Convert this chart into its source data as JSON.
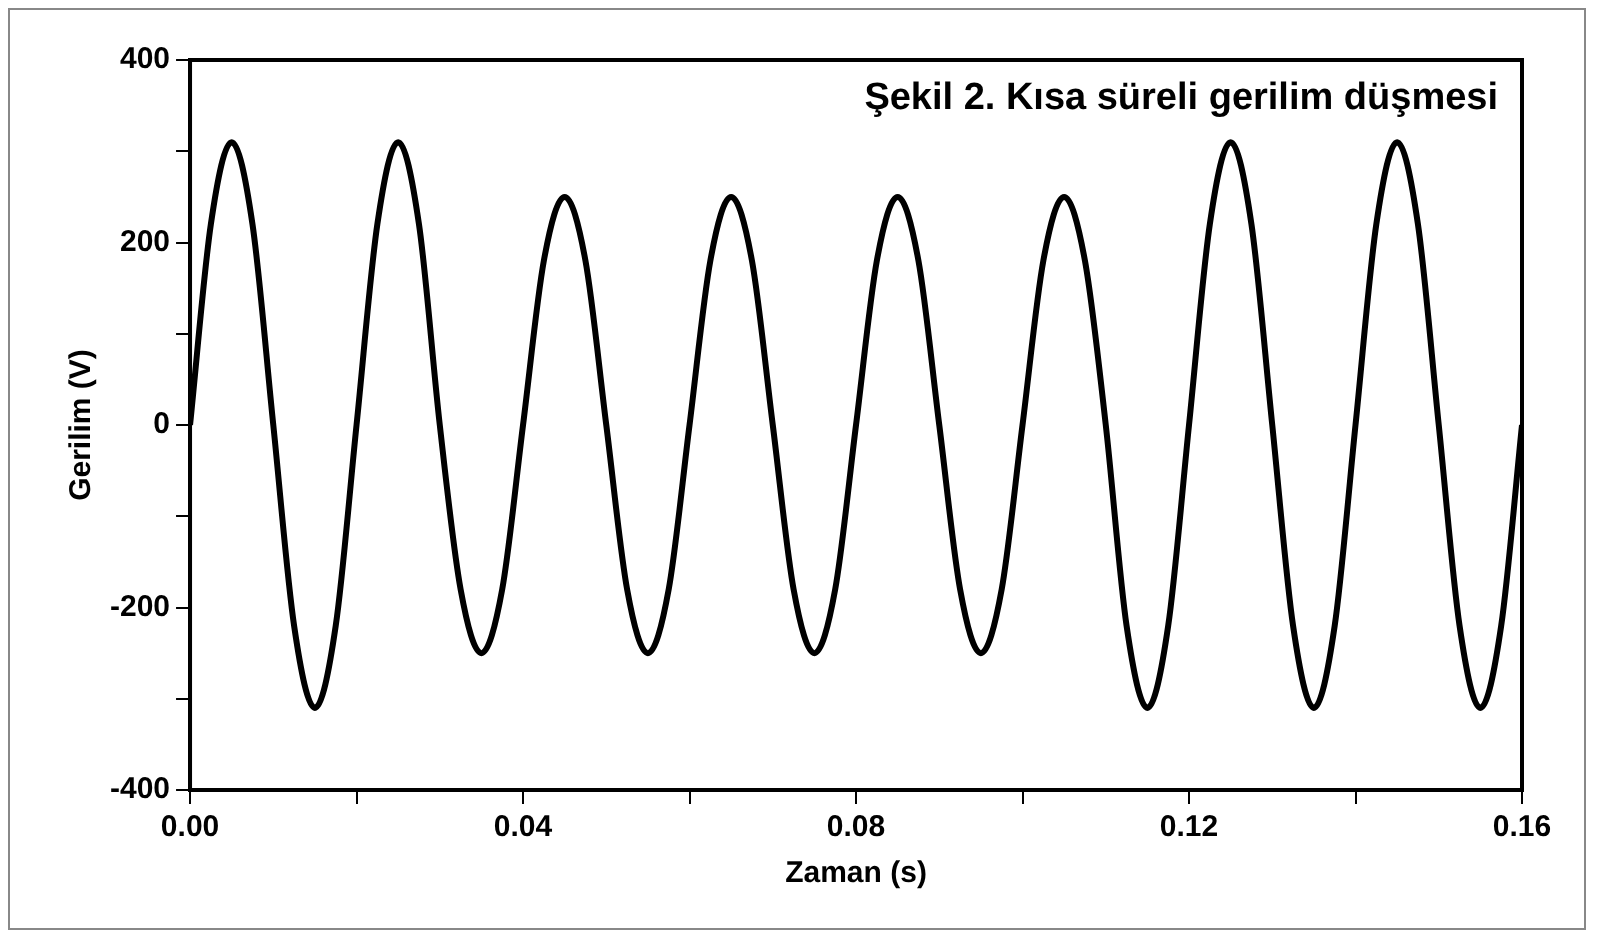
{
  "chart_data": {
    "type": "line",
    "title": "Şekil 2. Kısa süreli gerilim düşmesi",
    "xlabel": "Zaman (s)",
    "ylabel": "Gerilim (V)",
    "x": [
      0,
      0.0025,
      0.005,
      0.0075,
      0.01,
      0.0125,
      0.015,
      0.0175,
      0.02,
      0.0225,
      0.025,
      0.0275,
      0.03,
      0.0325,
      0.035,
      0.0375,
      0.04,
      0.0425,
      0.045,
      0.0475,
      0.05,
      0.0525,
      0.055,
      0.0575,
      0.06,
      0.0625,
      0.065,
      0.0675,
      0.07,
      0.0725,
      0.075,
      0.0775,
      0.08,
      0.0825,
      0.085,
      0.0875,
      0.09,
      0.0925,
      0.095,
      0.0975,
      0.1,
      0.1025,
      0.105,
      0.1075,
      0.11,
      0.1125,
      0.115,
      0.1175,
      0.12,
      0.1225,
      0.125,
      0.1275,
      0.13,
      0.1325,
      0.135,
      0.1375,
      0.14,
      0.1425,
      0.145,
      0.1475,
      0.15,
      0.1525,
      0.155,
      0.1575,
      0.16
    ],
    "series": [
      {
        "color": "#000000",
        "values": [
          0,
          220,
          310,
          220,
          0,
          -220,
          -310,
          -220,
          0,
          220,
          310,
          220,
          0,
          -180,
          -250,
          -180,
          0,
          180,
          250,
          180,
          0,
          -180,
          -250,
          -180,
          0,
          180,
          250,
          180,
          0,
          -180,
          -250,
          -180,
          0,
          180,
          250,
          180,
          0,
          -180,
          -250,
          -180,
          0,
          180,
          250,
          180,
          0,
          -220,
          -310,
          -220,
          0,
          220,
          310,
          220,
          0,
          -220,
          -310,
          -220,
          0,
          220,
          310,
          220,
          0,
          -220,
          -310,
          -220,
          0
        ]
      }
    ],
    "xlim": [
      0,
      0.16
    ],
    "xticks": [
      {
        "value": 0,
        "label": "0.00"
      },
      {
        "value": 0.02,
        "label": null
      },
      {
        "value": 0.04,
        "label": "0.04"
      },
      {
        "value": 0.06,
        "label": null
      },
      {
        "value": 0.08,
        "label": "0.08"
      },
      {
        "value": 0.1,
        "label": null
      },
      {
        "value": 0.12,
        "label": "0.12"
      },
      {
        "value": 0.14,
        "label": null
      },
      {
        "value": 0.16,
        "label": "0.16"
      }
    ],
    "ylim": [
      -400,
      400
    ],
    "yticks": [
      -400,
      {
        "value": -300,
        "label": null
      },
      -200,
      {
        "value": -100,
        "label": null
      },
      0,
      {
        "value": 100,
        "label": null
      },
      200,
      {
        "value": 300,
        "label": null
      },
      400
    ],
    "grid": false,
    "legend": false,
    "marker": "none",
    "line_style": "solid"
  }
}
